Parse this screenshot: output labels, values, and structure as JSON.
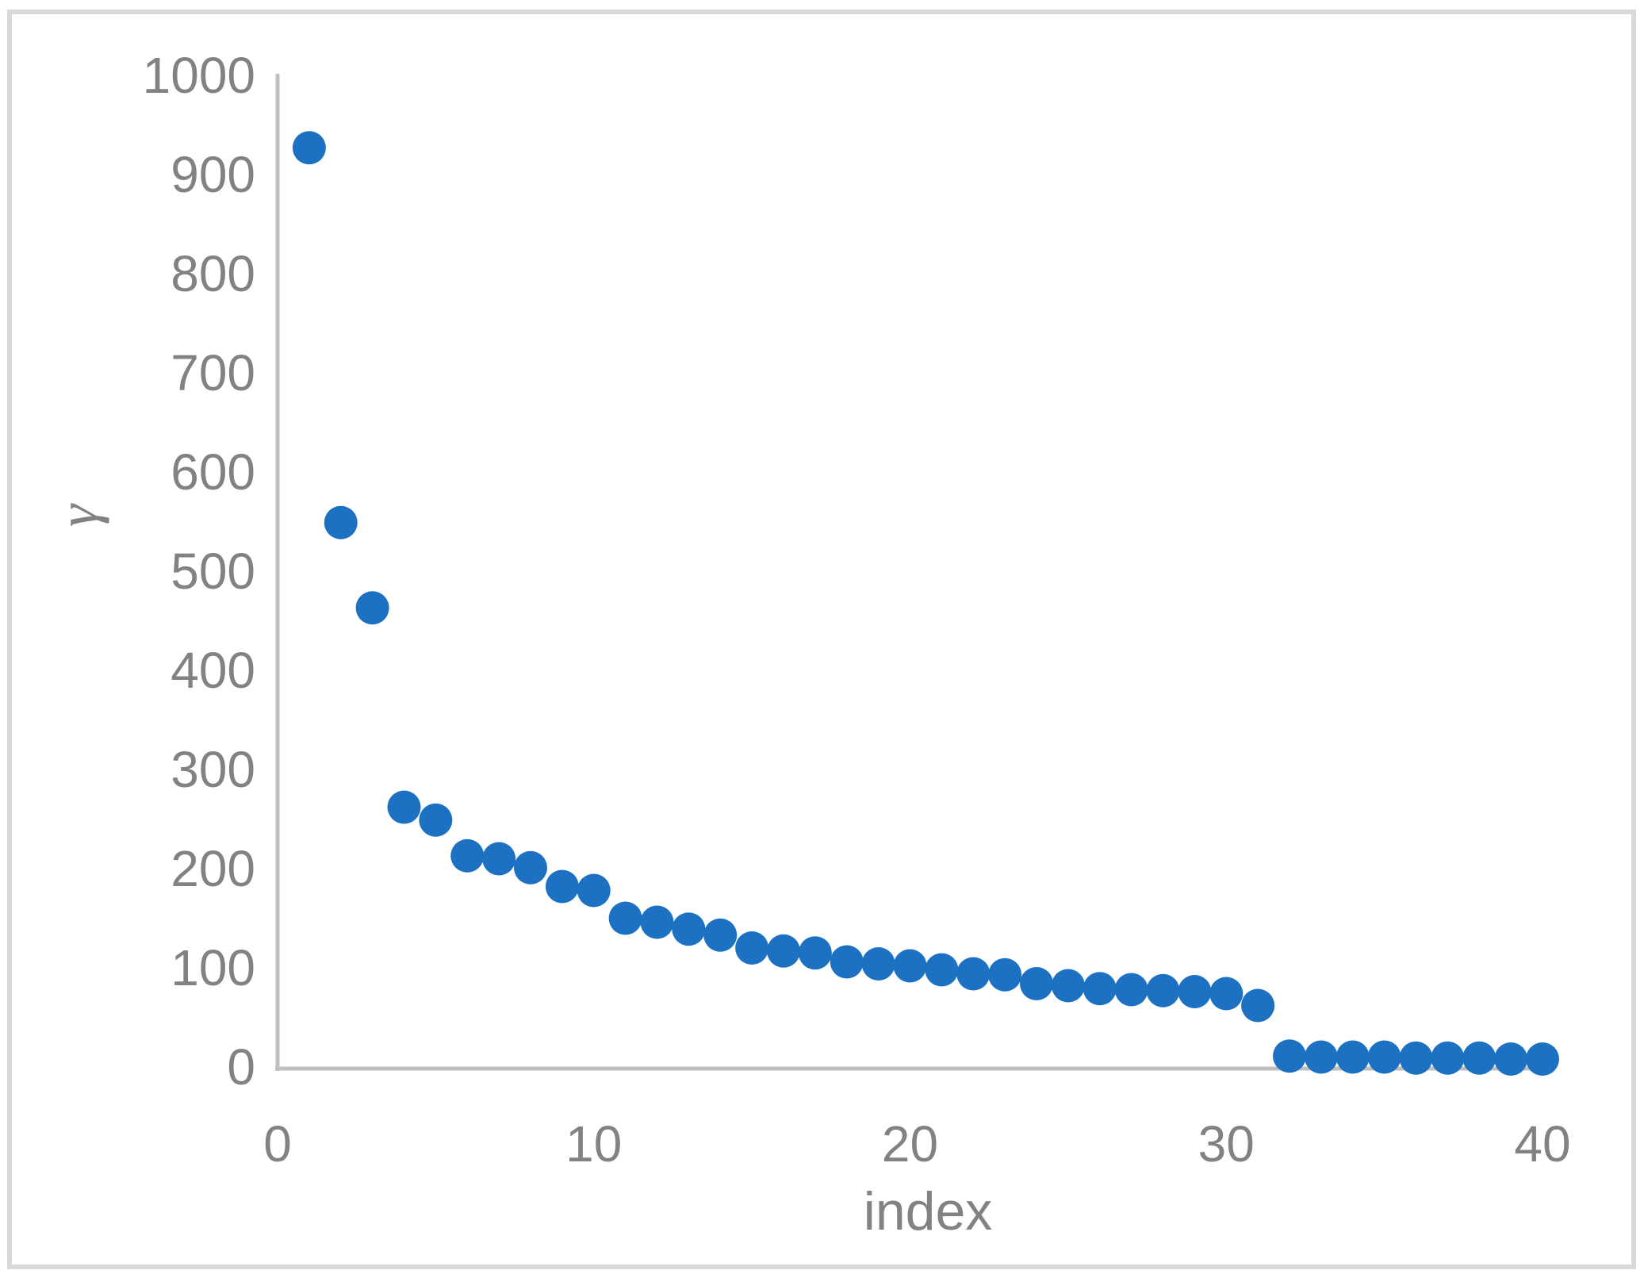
{
  "chart_data": {
    "type": "scatter",
    "title": "",
    "xlabel": "index",
    "ylabel": "γ",
    "x": [
      1,
      2,
      3,
      4,
      5,
      6,
      7,
      8,
      9,
      10,
      11,
      12,
      13,
      14,
      15,
      16,
      17,
      18,
      19,
      20,
      21,
      22,
      23,
      24,
      25,
      26,
      27,
      28,
      29,
      30,
      31,
      32,
      33,
      34,
      35,
      36,
      37,
      38,
      39,
      40
    ],
    "y": [
      927,
      549,
      463,
      262,
      249,
      213,
      210,
      201,
      182,
      178,
      150,
      146,
      139,
      133,
      120,
      117,
      115,
      106,
      104,
      102,
      98,
      94,
      93,
      84,
      82,
      79,
      78,
      77,
      76,
      74,
      62,
      11,
      10,
      10,
      10,
      9,
      9,
      9,
      8,
      8
    ],
    "xlim": [
      0,
      40
    ],
    "ylim": [
      0,
      1000
    ],
    "x_ticks": [
      0,
      10,
      20,
      30,
      40
    ],
    "y_ticks": [
      0,
      100,
      200,
      300,
      400,
      500,
      600,
      700,
      800,
      900,
      1000
    ],
    "grid": false,
    "legend": false,
    "marker": {
      "shape": "circle",
      "color": "#1C71C2",
      "radius_px": 21
    },
    "colors": {
      "axis_line": "#BFBFBF",
      "frame_border": "#D9D9D9",
      "tick_label": "#828282",
      "axis_title": "#828282",
      "background": "#FFFFFF"
    }
  }
}
